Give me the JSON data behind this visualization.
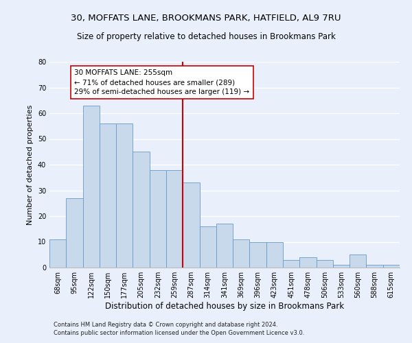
{
  "title1": "30, MOFFATS LANE, BROOKMANS PARK, HATFIELD, AL9 7RU",
  "title2": "Size of property relative to detached houses in Brookmans Park",
  "xlabel": "Distribution of detached houses by size in Brookmans Park",
  "ylabel": "Number of detached properties",
  "footnote1": "Contains HM Land Registry data © Crown copyright and database right 2024.",
  "footnote2": "Contains public sector information licensed under the Open Government Licence v3.0.",
  "bar_labels": [
    "68sqm",
    "95sqm",
    "122sqm",
    "150sqm",
    "177sqm",
    "205sqm",
    "232sqm",
    "259sqm",
    "287sqm",
    "314sqm",
    "341sqm",
    "369sqm",
    "396sqm",
    "423sqm",
    "451sqm",
    "478sqm",
    "506sqm",
    "533sqm",
    "560sqm",
    "588sqm",
    "615sqm"
  ],
  "bar_values": [
    11,
    27,
    63,
    56,
    56,
    45,
    38,
    38,
    33,
    16,
    17,
    11,
    10,
    10,
    3,
    4,
    3,
    1,
    5,
    1,
    1
  ],
  "bar_color": "#c9d9ec",
  "bar_edge_color": "#6699cc",
  "vline_color": "#cc0000",
  "annotation_text": "30 MOFFATS LANE: 255sqm\n← 71% of detached houses are smaller (289)\n29% of semi-detached houses are larger (119) →",
  "annotation_box_color": "#ffffff",
  "annotation_box_edge": "#cc0000",
  "ylim": [
    0,
    80
  ],
  "yticks": [
    0,
    10,
    20,
    30,
    40,
    50,
    60,
    70,
    80
  ],
  "background_color": "#eaf0fb",
  "grid_color": "#ffffff",
  "fig_background": "#eaf0fb",
  "title1_fontsize": 9.5,
  "title2_fontsize": 8.5,
  "xlabel_fontsize": 8.5,
  "ylabel_fontsize": 8,
  "tick_fontsize": 7,
  "annotation_fontsize": 7.5,
  "footnote_fontsize": 6
}
